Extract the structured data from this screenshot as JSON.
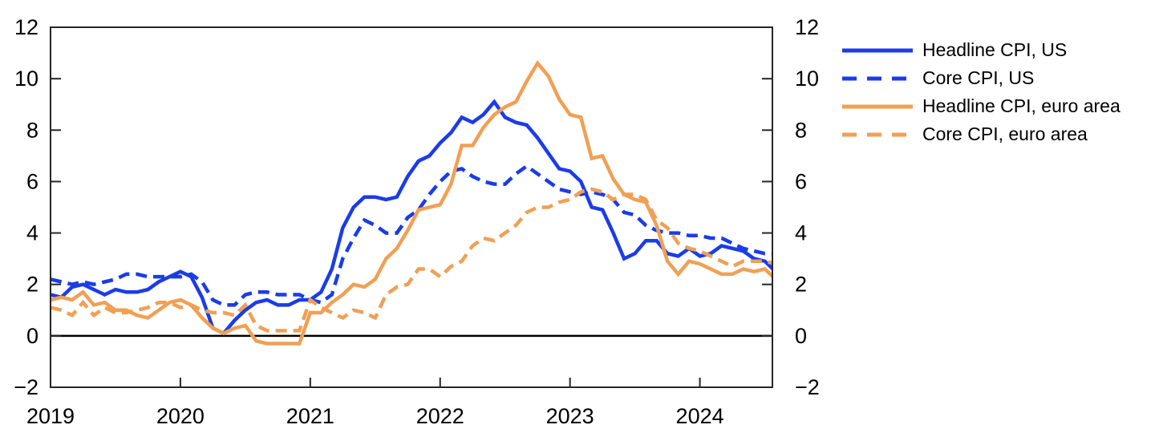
{
  "chart_data": {
    "type": "line",
    "title": "",
    "x_frequency": "monthly",
    "x_tick_labels": [
      "2019",
      "2020",
      "2021",
      "2022",
      "2023",
      "2024"
    ],
    "y_tick_values": [
      -2,
      0,
      2,
      4,
      6,
      8,
      10,
      12
    ],
    "y_tick_labels": [
      "−2",
      "0",
      "2",
      "4",
      "6",
      "8",
      "10",
      "12"
    ],
    "ylim": [
      -2,
      12
    ],
    "grid": false,
    "zero_line": true,
    "legend_position": "outside-top-right",
    "axis_color": "#262626",
    "zero_line_color": "#000000",
    "series": [
      {
        "name": "Headline CPI, US",
        "color": "#1b3ce8",
        "style": "solid",
        "values": [
          1.6,
          1.5,
          1.9,
          2.0,
          1.8,
          1.6,
          1.8,
          1.7,
          1.7,
          1.8,
          2.1,
          2.3,
          2.5,
          2.3,
          1.5,
          0.3,
          0.1,
          0.6,
          1.0,
          1.3,
          1.4,
          1.2,
          1.2,
          1.4,
          1.4,
          1.7,
          2.6,
          4.2,
          5.0,
          5.4,
          5.4,
          5.3,
          5.4,
          6.2,
          6.8,
          7.0,
          7.5,
          7.9,
          8.5,
          8.3,
          8.6,
          9.1,
          8.5,
          8.3,
          8.2,
          7.7,
          7.1,
          6.5,
          6.4,
          6.0,
          5.0,
          4.9,
          4.0,
          3.0,
          3.2,
          3.7,
          3.7,
          3.2,
          3.1,
          3.4,
          3.1,
          3.2,
          3.5,
          3.4,
          3.3,
          3.0,
          2.9,
          2.5
        ]
      },
      {
        "name": "Core CPI, US",
        "color": "#1b3ce8",
        "style": "dashed",
        "values": [
          2.2,
          2.1,
          2.0,
          2.1,
          2.0,
          2.1,
          2.2,
          2.4,
          2.4,
          2.3,
          2.3,
          2.3,
          2.3,
          2.4,
          2.1,
          1.4,
          1.2,
          1.2,
          1.6,
          1.7,
          1.7,
          1.6,
          1.6,
          1.6,
          1.4,
          1.3,
          1.6,
          3.0,
          3.8,
          4.5,
          4.3,
          4.0,
          4.0,
          4.6,
          4.9,
          5.5,
          6.0,
          6.4,
          6.5,
          6.2,
          6.0,
          5.9,
          5.9,
          6.3,
          6.6,
          6.3,
          6.0,
          5.7,
          5.6,
          5.5,
          5.6,
          5.5,
          5.3,
          4.8,
          4.7,
          4.3,
          4.1,
          4.0,
          4.0,
          3.9,
          3.9,
          3.8,
          3.8,
          3.6,
          3.4,
          3.3,
          3.2,
          3.2
        ]
      },
      {
        "name": "Headline CPI, euro area",
        "color": "#f0a055",
        "style": "solid",
        "values": [
          1.4,
          1.5,
          1.4,
          1.7,
          1.2,
          1.3,
          1.0,
          1.0,
          0.8,
          0.7,
          1.0,
          1.3,
          1.4,
          1.2,
          0.7,
          0.3,
          0.1,
          0.3,
          0.4,
          -0.2,
          -0.3,
          -0.3,
          -0.3,
          -0.3,
          0.9,
          0.9,
          1.3,
          1.6,
          2.0,
          1.9,
          2.2,
          3.0,
          3.4,
          4.1,
          4.9,
          5.0,
          5.1,
          5.9,
          7.4,
          7.4,
          8.1,
          8.6,
          8.9,
          9.1,
          9.9,
          10.6,
          10.1,
          9.2,
          8.6,
          8.5,
          6.9,
          7.0,
          6.1,
          5.5,
          5.3,
          5.2,
          4.3,
          2.9,
          2.4,
          2.9,
          2.8,
          2.6,
          2.4,
          2.4,
          2.6,
          2.5,
          2.6,
          2.2
        ]
      },
      {
        "name": "Core CPI, euro area",
        "color": "#f0a055",
        "style": "dashed",
        "values": [
          1.1,
          1.0,
          0.8,
          1.3,
          0.8,
          1.1,
          0.9,
          0.9,
          1.0,
          1.1,
          1.3,
          1.3,
          1.1,
          1.2,
          1.0,
          0.9,
          0.9,
          0.8,
          1.2,
          0.4,
          0.2,
          0.2,
          0.2,
          0.2,
          1.4,
          1.1,
          0.9,
          0.7,
          1.0,
          0.9,
          0.7,
          1.6,
          1.9,
          2.0,
          2.6,
          2.6,
          2.3,
          2.7,
          2.9,
          3.5,
          3.8,
          3.7,
          4.0,
          4.3,
          4.8,
          5.0,
          5.0,
          5.2,
          5.3,
          5.6,
          5.7,
          5.6,
          5.3,
          5.5,
          5.5,
          5.3,
          4.5,
          4.2,
          3.6,
          3.4,
          3.3,
          3.1,
          2.9,
          2.7,
          2.9,
          2.9,
          2.9,
          2.8
        ]
      }
    ]
  }
}
